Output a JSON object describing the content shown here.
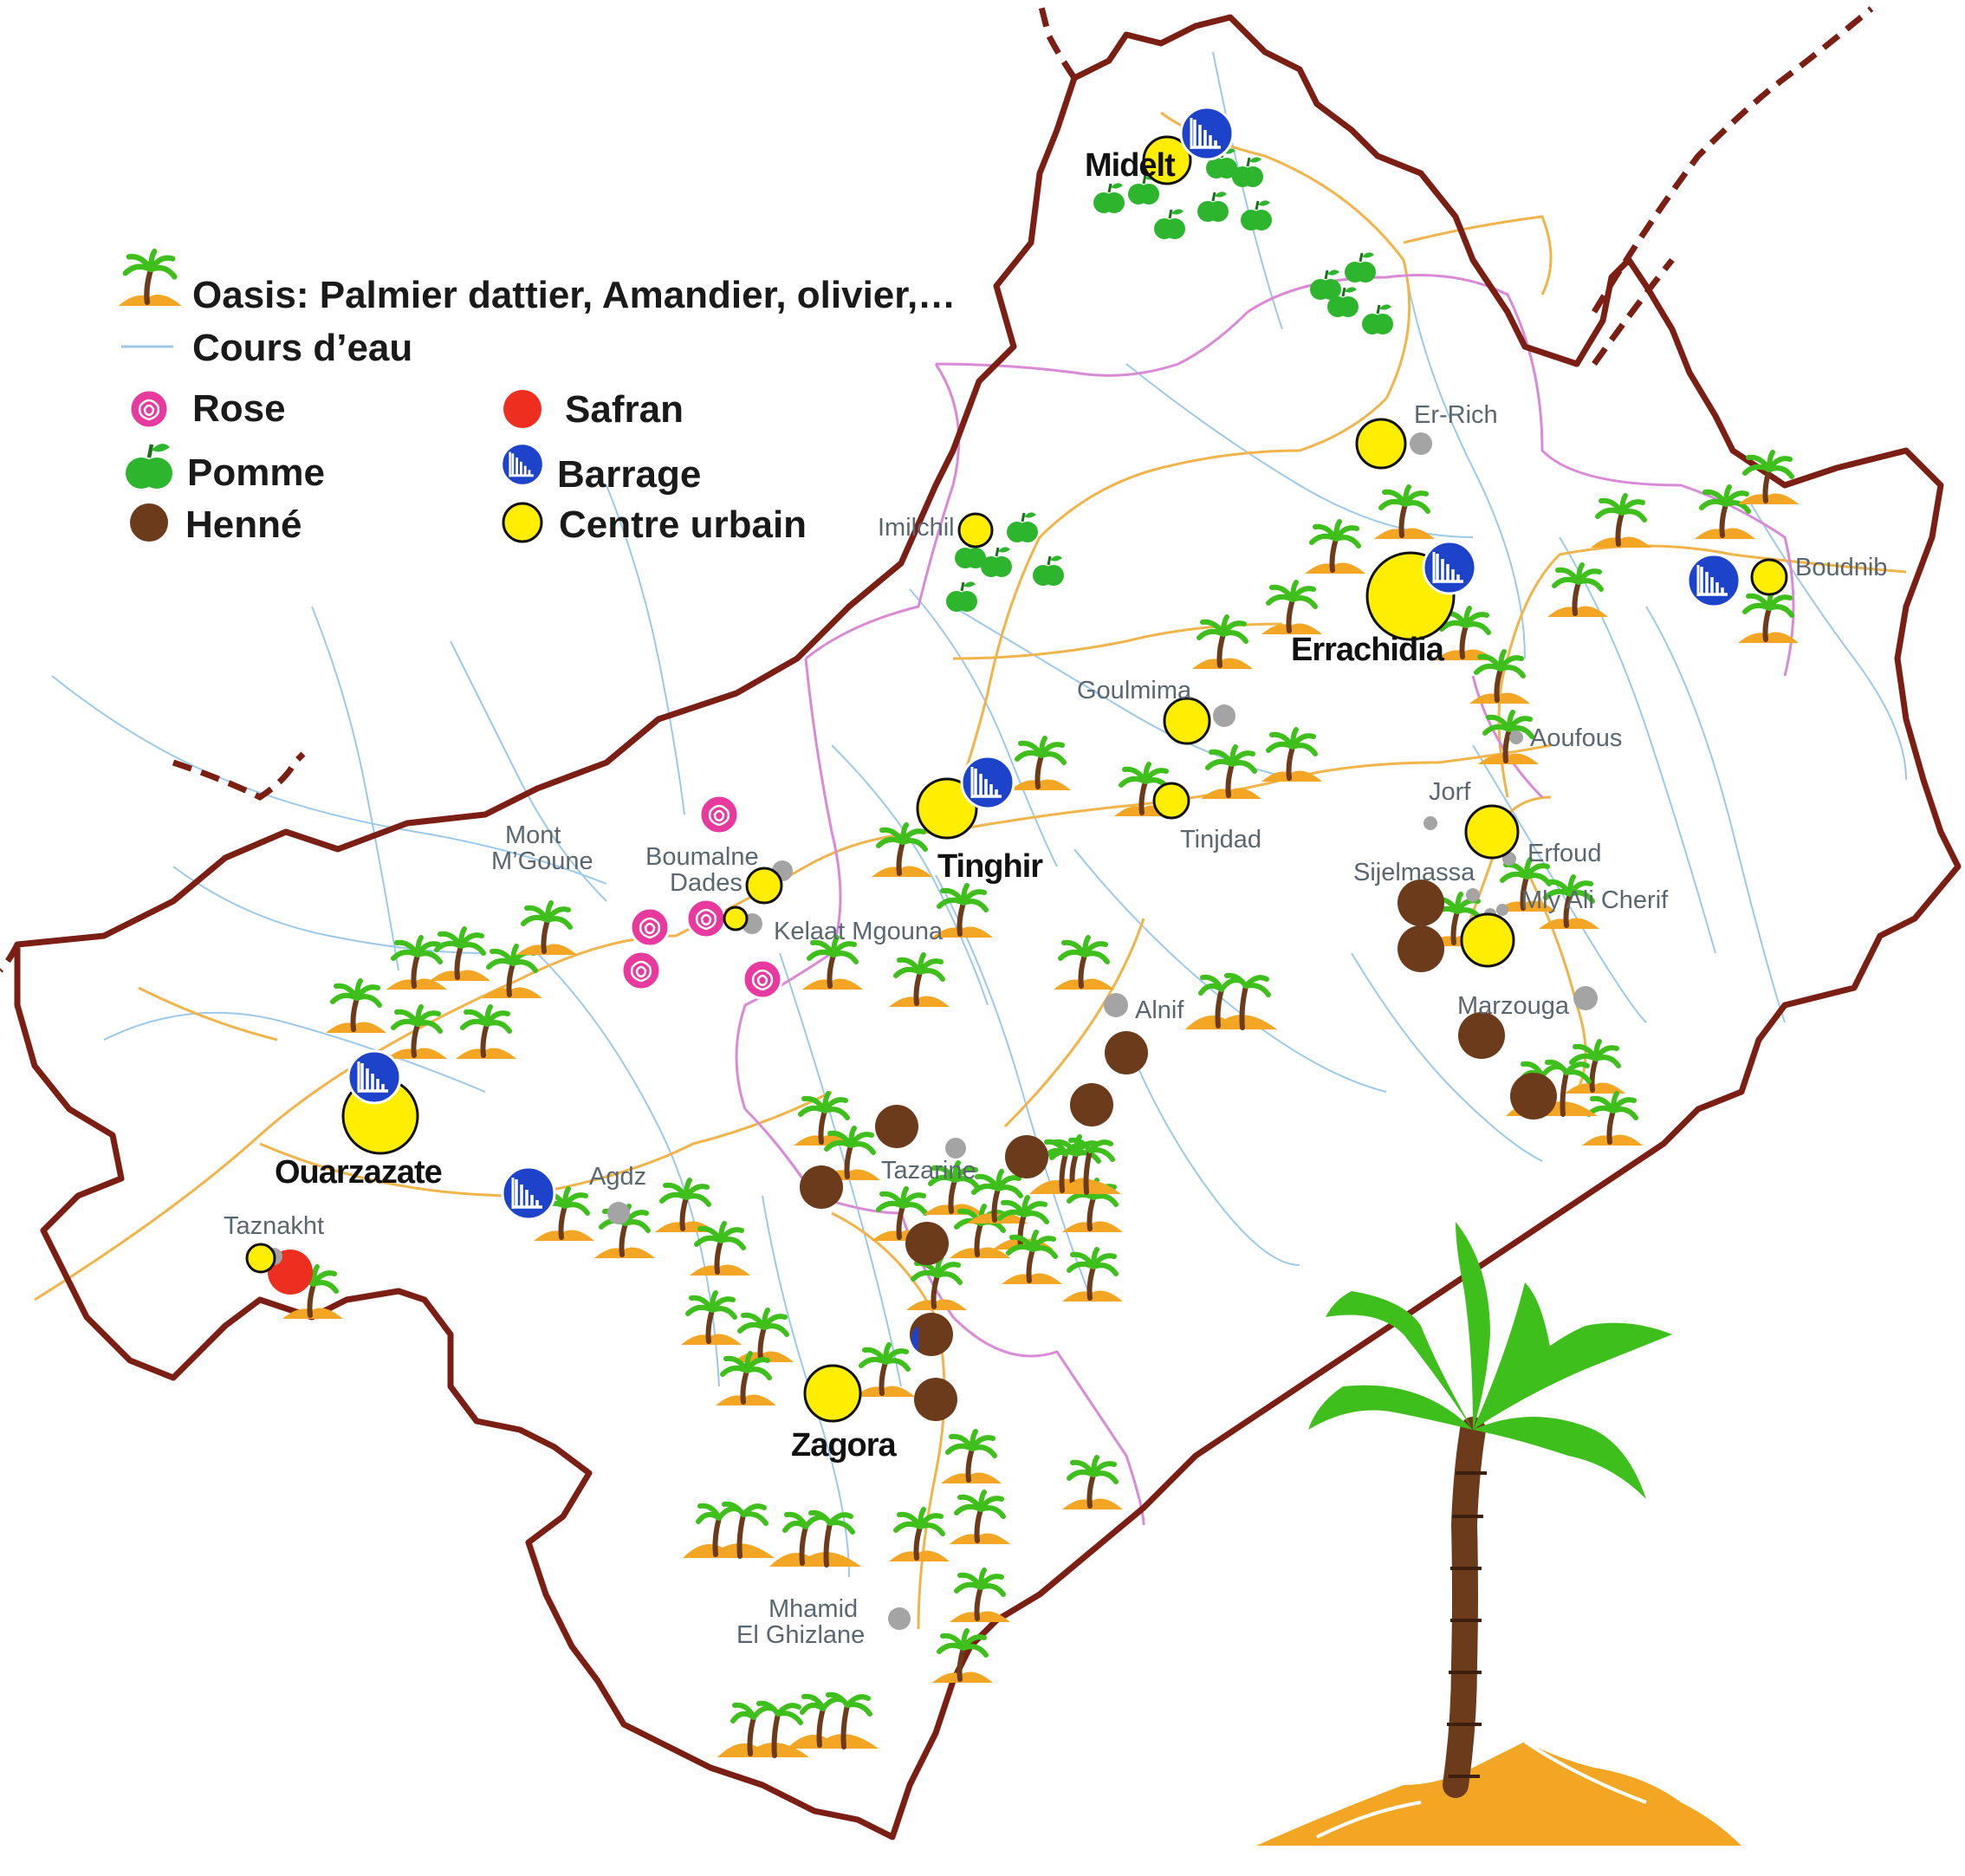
{
  "map": {
    "colors": {
      "border": "#7b1e14",
      "river": "#9cc9e8",
      "road": "#f0b44a",
      "province": "#d98ad6",
      "urban": "#ffee00",
      "minor_town": "#a4a4a4",
      "rose": "#e8399e",
      "apple": "#2db52d",
      "henna": "#6b3b1c",
      "saffron": "#ee2e1e",
      "dam": "#1c43c9",
      "sand": "#f2a623",
      "palm_leaf": "#3fbf1c",
      "palm_trunk": "#6b3b1c"
    },
    "legend": [
      {
        "key": "oasis",
        "icon": "palm-icon",
        "label": "Oasis: Palmier dattier, Amandier, olivier,…"
      },
      {
        "key": "river",
        "icon": "river-line-icon",
        "label": "Cours d’eau"
      },
      {
        "key": "rose",
        "icon": "rose-icon",
        "label": "Rose"
      },
      {
        "key": "saffron",
        "icon": "saffron-dot-icon",
        "label": "Safran"
      },
      {
        "key": "apple",
        "icon": "apple-icon",
        "label": "Pomme"
      },
      {
        "key": "dam",
        "icon": "dam-icon",
        "label": "Barrage"
      },
      {
        "key": "henna",
        "icon": "henna-dot-icon",
        "label": "Henné"
      },
      {
        "key": "urban",
        "icon": "urban-center-icon",
        "label": "Centre urbain"
      }
    ],
    "major_cities": [
      {
        "id": "midelt",
        "name": "Midelt"
      },
      {
        "id": "errachidia",
        "name": "Errachidia"
      },
      {
        "id": "tinghir",
        "name": "Tinghir"
      },
      {
        "id": "ouarzazate",
        "name": "Ouarzazate"
      },
      {
        "id": "zagora",
        "name": "Zagora"
      }
    ],
    "towns": [
      {
        "id": "er-rich",
        "name": "Er-Rich"
      },
      {
        "id": "imilchil",
        "name": "Imilchil"
      },
      {
        "id": "boudnib",
        "name": "Boudnib"
      },
      {
        "id": "goulmima",
        "name": "Goulmima"
      },
      {
        "id": "aoufous",
        "name": "Aoufous"
      },
      {
        "id": "jorf",
        "name": "Jorf"
      },
      {
        "id": "erfoud",
        "name": "Erfoud"
      },
      {
        "id": "tinjdad",
        "name": "Tinjdad"
      },
      {
        "id": "sijelmassa",
        "name": "Sijelmassa"
      },
      {
        "id": "mly-ali-cherif",
        "name": "Mly Ali Cherif"
      },
      {
        "id": "alnif",
        "name": "Alnif"
      },
      {
        "id": "marzouga",
        "name": "Marzouga"
      },
      {
        "id": "kelaat-mgouna",
        "name": "Kelaat Mgouna"
      },
      {
        "id": "boumalne-1",
        "name": "Boumalne"
      },
      {
        "id": "boumalne-2",
        "name": "Dades"
      },
      {
        "id": "mont-1",
        "name": "Mont"
      },
      {
        "id": "mont-2",
        "name": "M’Goune"
      },
      {
        "id": "agdz",
        "name": "Agdz"
      },
      {
        "id": "tazarine",
        "name": "Tazarine"
      },
      {
        "id": "taznakht",
        "name": "Taznakht"
      },
      {
        "id": "mhamid-1",
        "name": "Mhamid"
      },
      {
        "id": "mhamid-2",
        "name": "El Ghizlane"
      }
    ]
  }
}
